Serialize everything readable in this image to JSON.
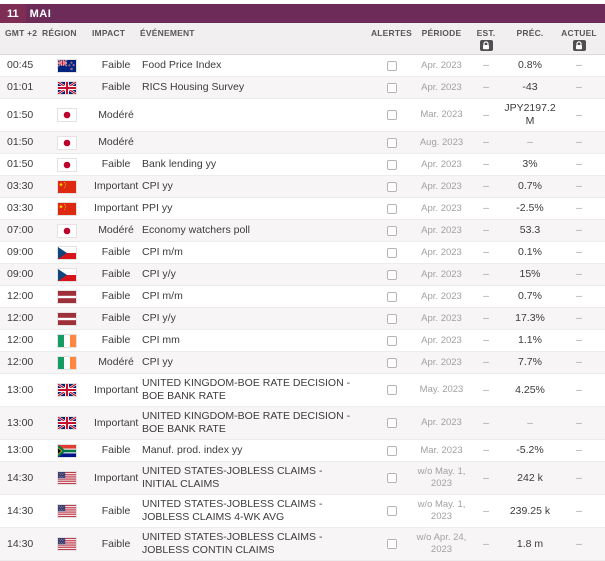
{
  "colors": {
    "bar_bg": "#6c2b59",
    "day_bg": "#7e2d55",
    "header_bg": "#f1eff0",
    "alt_row_bg": "#f7f5f6"
  },
  "date_bar": {
    "day": "11",
    "month": "MAI"
  },
  "columns": {
    "time": "GMT +2",
    "region": "RÉGION",
    "impact": "IMPACT",
    "event": "ÉVÉNEMENT",
    "alerts": "ALERTES",
    "period": "PÉRIODE",
    "est": "EST.",
    "prev": "PRÉC.",
    "actual": "ACTUEL"
  },
  "rows": [
    {
      "time": "00:45",
      "region": "new-zealand",
      "impact": "Faible",
      "event": "Food Price Index",
      "period": "Apr. 2023",
      "est": "–",
      "prev": "0.8%",
      "actual": "–"
    },
    {
      "time": "01:01",
      "region": "united-kingdom",
      "impact": "Faible",
      "event": "RICS Housing Survey",
      "period": "Apr. 2023",
      "est": "–",
      "prev": "-43",
      "actual": "–"
    },
    {
      "time": "01:50",
      "region": "japan",
      "impact": "Modéré",
      "event": "",
      "period": "Mar. 2023",
      "est": "–",
      "prev": "JPY2197.2 M",
      "actual": "–"
    },
    {
      "time": "01:50",
      "region": "japan",
      "impact": "Modéré",
      "event": "",
      "period": "Aug. 2023",
      "est": "–",
      "prev": "–",
      "actual": "–"
    },
    {
      "time": "01:50",
      "region": "japan",
      "impact": "Faible",
      "event": "Bank lending yy",
      "period": "Apr. 2023",
      "est": "–",
      "prev": "3%",
      "actual": "–"
    },
    {
      "time": "03:30",
      "region": "china",
      "impact": "Important",
      "event": "CPI yy",
      "period": "Apr. 2023",
      "est": "–",
      "prev": "0.7%",
      "actual": "–"
    },
    {
      "time": "03:30",
      "region": "china",
      "impact": "Important",
      "event": "PPI yy",
      "period": "Apr. 2023",
      "est": "–",
      "prev": "-2.5%",
      "actual": "–"
    },
    {
      "time": "07:00",
      "region": "japan",
      "impact": "Modéré",
      "event": "Economy watchers poll",
      "period": "Apr. 2023",
      "est": "–",
      "prev": "53.3",
      "actual": "–"
    },
    {
      "time": "09:00",
      "region": "czech-republic",
      "impact": "Faible",
      "event": "CPI m/m",
      "period": "Apr. 2023",
      "est": "–",
      "prev": "0.1%",
      "actual": "–"
    },
    {
      "time": "09:00",
      "region": "czech-republic",
      "impact": "Faible",
      "event": "CPI y/y",
      "period": "Apr. 2023",
      "est": "–",
      "prev": "15%",
      "actual": "–"
    },
    {
      "time": "12:00",
      "region": "latvia",
      "impact": "Faible",
      "event": "CPI m/m",
      "period": "Apr. 2023",
      "est": "–",
      "prev": "0.7%",
      "actual": "–"
    },
    {
      "time": "12:00",
      "region": "latvia",
      "impact": "Faible",
      "event": "CPI y/y",
      "period": "Apr. 2023",
      "est": "–",
      "prev": "17.3%",
      "actual": "–"
    },
    {
      "time": "12:00",
      "region": "ireland",
      "impact": "Faible",
      "event": "CPI mm",
      "period": "Apr. 2023",
      "est": "–",
      "prev": "1.1%",
      "actual": "–"
    },
    {
      "time": "12:00",
      "region": "ireland",
      "impact": "Modéré",
      "event": "CPI yy",
      "period": "Apr. 2023",
      "est": "–",
      "prev": "7.7%",
      "actual": "–"
    },
    {
      "time": "13:00",
      "region": "united-kingdom",
      "impact": "Important",
      "event": "UNITED KINGDOM-BOE RATE DECISION - BOE BANK RATE",
      "period": "May. 2023",
      "est": "–",
      "prev": "4.25%",
      "actual": "–"
    },
    {
      "time": "13:00",
      "region": "united-kingdom",
      "impact": "Important",
      "event": "UNITED KINGDOM-BOE RATE DECISION - BOE BANK RATE",
      "period": "Apr. 2023",
      "est": "–",
      "prev": "–",
      "actual": "–"
    },
    {
      "time": "13:00",
      "region": "south-africa",
      "impact": "Faible",
      "event": "Manuf. prod. index yy",
      "period": "Mar. 2023",
      "est": "–",
      "prev": "-5.2%",
      "actual": "–"
    },
    {
      "time": "14:30",
      "region": "united-states",
      "impact": "Important",
      "event": "UNITED STATES-JOBLESS CLAIMS - INITIAL CLAIMS",
      "period": "w/o May. 1, 2023",
      "est": "–",
      "prev": "242 k",
      "actual": "–"
    },
    {
      "time": "14:30",
      "region": "united-states",
      "impact": "Faible",
      "event": "UNITED STATES-JOBLESS CLAIMS - JOBLESS CLAIMS 4-WK AVG",
      "period": "w/o May. 1, 2023",
      "est": "–",
      "prev": "239.25 k",
      "actual": "–"
    },
    {
      "time": "14:30",
      "region": "united-states",
      "impact": "Faible",
      "event": "UNITED STATES-JOBLESS CLAIMS - JOBLESS CONTIN CLAIMS",
      "period": "w/o Apr. 24, 2023",
      "est": "–",
      "prev": "1.8 m",
      "actual": "–"
    }
  ]
}
